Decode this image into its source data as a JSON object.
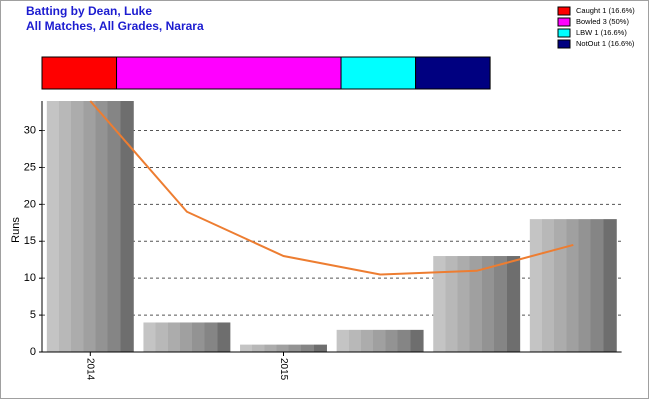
{
  "title": "Batting by Dean, Luke",
  "subtitle": "All Matches, All Grades, Narara",
  "dismissals": {
    "xlim": [
      0,
      100
    ],
    "items": [
      {
        "label": "Caught 1 (16.6%)",
        "value": 16.6,
        "color": "#ff0000"
      },
      {
        "label": "Bowled 3 (50%)",
        "value": 50,
        "color": "#ff00ff"
      },
      {
        "label": "LBW 1 (16.6%)",
        "value": 16.6,
        "color": "#00ffff"
      },
      {
        "label": "NotOut 1 (16.6%)",
        "value": 16.6,
        "color": "#000080"
      }
    ]
  },
  "chart_data": {
    "type": "bar",
    "y_label": "Runs",
    "categories": [
      "2014",
      null,
      "2015",
      null,
      null,
      null
    ],
    "series": [
      {
        "type": "bar",
        "values": [
          34,
          4,
          1,
          3,
          13,
          18
        ]
      },
      {
        "type": "line",
        "color": "#ed7d31",
        "values": [
          34,
          19,
          13,
          10.5,
          11,
          14.5
        ]
      }
    ],
    "ylim": [
      0,
      34
    ],
    "yticks": [
      0,
      5,
      10,
      15,
      20,
      25,
      30
    ],
    "grid": true
  }
}
